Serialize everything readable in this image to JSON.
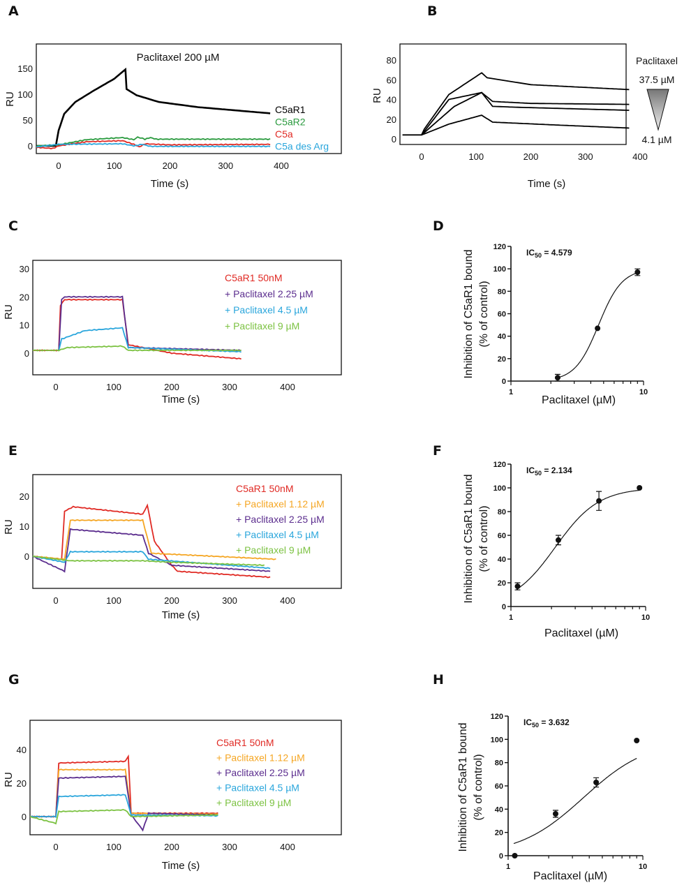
{
  "chart_data": [
    {
      "panel": "A",
      "type": "line",
      "title": "Paclitaxel 200 µM",
      "xlabel": "Time (s)",
      "ylabel": "RU",
      "xticks": [
        0,
        100,
        200,
        300,
        400
      ],
      "yticks": [
        0,
        50,
        100,
        150
      ],
      "xlim": [
        -40,
        510
      ],
      "ylim": [
        -15,
        197
      ],
      "series": [
        {
          "name": "C5aR1",
          "color": "#000000",
          "points": [
            [
              -40,
              0
            ],
            [
              -5,
              0
            ],
            [
              0,
              30
            ],
            [
              10,
              62
            ],
            [
              30,
              85
            ],
            [
              60,
              105
            ],
            [
              100,
              130
            ],
            [
              120,
              148
            ],
            [
              122,
              110
            ],
            [
              140,
              98
            ],
            [
              180,
              85
            ],
            [
              250,
              75
            ],
            [
              380,
              63
            ]
          ]
        },
        {
          "name": "C5aR2",
          "color": "#2a9a3e",
          "points": [
            [
              -40,
              0
            ],
            [
              0,
              2
            ],
            [
              50,
              12
            ],
            [
              115,
              16
            ],
            [
              135,
              12
            ],
            [
              142,
              17
            ],
            [
              155,
              13
            ],
            [
              165,
              16
            ],
            [
              175,
              13
            ],
            [
              380,
              13
            ]
          ]
        },
        {
          "name": "C5a",
          "color": "#e02a24",
          "points": [
            [
              -40,
              -3
            ],
            [
              -10,
              -5
            ],
            [
              0,
              0
            ],
            [
              50,
              8
            ],
            [
              115,
              10
            ],
            [
              135,
              3
            ],
            [
              145,
              -2
            ],
            [
              155,
              4
            ],
            [
              200,
              2
            ],
            [
              380,
              3
            ]
          ]
        },
        {
          "name": "C5a des Arg",
          "color": "#2aa6dc",
          "points": [
            [
              -40,
              -2
            ],
            [
              0,
              3
            ],
            [
              115,
              4
            ],
            [
              135,
              0
            ],
            [
              150,
              3
            ],
            [
              165,
              -1
            ],
            [
              380,
              -1
            ]
          ]
        }
      ]
    },
    {
      "panel": "B",
      "type": "line",
      "xlabel": "Time (s)",
      "ylabel": "RU",
      "xticks": [
        0,
        100,
        200,
        300,
        400
      ],
      "yticks": [
        0,
        20,
        40,
        60,
        80
      ],
      "xlim": [
        -40,
        375
      ],
      "ylim": [
        -6,
        96
      ],
      "legend_title": "Paclitaxel",
      "legend_high": "37.5 µM",
      "legend_low": "4.1 µM",
      "series": [
        {
          "color": "#000000",
          "points": [
            [
              -35,
              4
            ],
            [
              0,
              4
            ],
            [
              5,
              10
            ],
            [
              50,
              45
            ],
            [
              110,
              67
            ],
            [
              120,
              62
            ],
            [
              200,
              55
            ],
            [
              380,
              50
            ]
          ]
        },
        {
          "color": "#000000",
          "points": [
            [
              0,
              4
            ],
            [
              50,
              40
            ],
            [
              110,
              47
            ],
            [
              130,
              38
            ],
            [
              200,
              36
            ],
            [
              380,
              35
            ]
          ]
        },
        {
          "color": "#000000",
          "points": [
            [
              0,
              4
            ],
            [
              60,
              33
            ],
            [
              110,
              47
            ],
            [
              130,
              33
            ],
            [
              180,
              32
            ],
            [
              380,
              29
            ]
          ]
        },
        {
          "color": "#000000",
          "points": [
            [
              0,
              4
            ],
            [
              50,
              15
            ],
            [
              110,
              24
            ],
            [
              130,
              17
            ],
            [
              250,
              14
            ],
            [
              380,
              11
            ]
          ]
        }
      ]
    },
    {
      "panel": "C",
      "type": "line",
      "xlabel": "Time (s)",
      "ylabel": "RU",
      "xticks": [
        0,
        100,
        200,
        300,
        400
      ],
      "yticks": [
        0,
        10,
        20,
        30
      ],
      "xlim": [
        -40,
        492
      ],
      "ylim": [
        -8,
        33
      ],
      "series": [
        {
          "name": "C5aR1 50nM",
          "color": "#e02a24",
          "points": [
            [
              -40,
              1
            ],
            [
              5,
              1
            ],
            [
              8,
              17
            ],
            [
              15,
              19
            ],
            [
              115,
              19
            ],
            [
              125,
              3
            ],
            [
              200,
              0
            ],
            [
              320,
              -2
            ]
          ]
        },
        {
          "name": "+ Paclitaxel 2.25 µM",
          "color": "#5b2d8e",
          "points": [
            [
              5,
              1
            ],
            [
              10,
              19
            ],
            [
              15,
              20
            ],
            [
              115,
              20
            ],
            [
              125,
              2
            ],
            [
              320,
              1
            ]
          ]
        },
        {
          "name": "+ Paclitaxel 4.5 µM",
          "color": "#2aa6dc",
          "points": [
            [
              5,
              1
            ],
            [
              10,
              5
            ],
            [
              50,
              8
            ],
            [
              115,
              9
            ],
            [
              125,
              2
            ],
            [
              320,
              0.5
            ]
          ]
        },
        {
          "name": "+ Paclitaxel 9 µM",
          "color": "#7cc242",
          "points": [
            [
              -40,
              1
            ],
            [
              5,
              1
            ],
            [
              20,
              2
            ],
            [
              115,
              2.5
            ],
            [
              125,
              1
            ],
            [
              320,
              1
            ]
          ]
        }
      ]
    },
    {
      "panel": "D",
      "type": "scatter",
      "xlabel": "Paclitaxel (µM)",
      "ylabel": "Inhibition of C5aR1 bound",
      "ylabel2": "(% of control)",
      "xscale": "log",
      "xlim": [
        1,
        10
      ],
      "ylim": [
        0,
        120
      ],
      "xticks": [
        1,
        10
      ],
      "yticks": [
        0,
        20,
        40,
        60,
        80,
        100,
        120
      ],
      "ic50_label": "IC",
      "ic50_sub": "50",
      "ic50_value": " = 4.579",
      "ic50": 4.579,
      "points": [
        {
          "x": 2.25,
          "y": 3,
          "err": 3
        },
        {
          "x": 4.5,
          "y": 47,
          "err": 0
        },
        {
          "x": 9,
          "y": 97,
          "err": 3
        }
      ]
    },
    {
      "panel": "E",
      "type": "line",
      "xlabel": "Time (s)",
      "ylabel": "RU",
      "xticks": [
        0,
        100,
        200,
        300,
        400
      ],
      "yticks": [
        0,
        10,
        20
      ],
      "xlim": [
        -40,
        492
      ],
      "ylim": [
        -11,
        27
      ],
      "series": [
        {
          "name": "C5aR1 50nM",
          "color": "#e02a24",
          "points": [
            [
              -40,
              0
            ],
            [
              10,
              -1
            ],
            [
              15,
              15
            ],
            [
              30,
              16.5
            ],
            [
              150,
              14
            ],
            [
              158,
              17
            ],
            [
              170,
              5
            ],
            [
              200,
              -3
            ],
            [
              210,
              -5
            ],
            [
              370,
              -7
            ]
          ]
        },
        {
          "name": "+ Paclitaxel 1.12 µM",
          "color": "#f5a623",
          "points": [
            [
              -40,
              0
            ],
            [
              15,
              -1
            ],
            [
              25,
              12
            ],
            [
              150,
              12
            ],
            [
              165,
              1
            ],
            [
              380,
              -1
            ]
          ]
        },
        {
          "name": "+ Paclitaxel 2.25 µM",
          "color": "#5b2d8e",
          "points": [
            [
              -40,
              0
            ],
            [
              15,
              -5
            ],
            [
              25,
              9
            ],
            [
              150,
              7
            ],
            [
              160,
              1
            ],
            [
              200,
              -3
            ],
            [
              370,
              -5
            ]
          ]
        },
        {
          "name": "+ Paclitaxel 4.5 µM",
          "color": "#2aa6dc",
          "points": [
            [
              -40,
              0
            ],
            [
              15,
              -2
            ],
            [
              25,
              1.5
            ],
            [
              150,
              1.5
            ],
            [
              160,
              -1
            ],
            [
              370,
              -4
            ]
          ]
        },
        {
          "name": "+ Paclitaxel 9 µM",
          "color": "#7cc242",
          "points": [
            [
              -40,
              0
            ],
            [
              25,
              -1.5
            ],
            [
              150,
              -1.5
            ],
            [
              200,
              -2
            ],
            [
              360,
              -3
            ]
          ]
        }
      ]
    },
    {
      "panel": "F",
      "type": "scatter",
      "xlabel": "Paclitaxel (µM)",
      "ylabel": "Inhibition of C5aR1 bound",
      "ylabel2": "(% of control)",
      "xscale": "log",
      "xlim": [
        1,
        10
      ],
      "ylim": [
        0,
        120
      ],
      "xticks": [
        1,
        10
      ],
      "yticks": [
        0,
        20,
        40,
        60,
        80,
        100,
        120
      ],
      "ic50_label": "IC",
      "ic50_sub": "50",
      "ic50_value": " = 2.134",
      "ic50": 2.134,
      "points": [
        {
          "x": 1.12,
          "y": 17,
          "err": 3
        },
        {
          "x": 2.25,
          "y": 56,
          "err": 4
        },
        {
          "x": 4.5,
          "y": 89,
          "err": 8
        },
        {
          "x": 9,
          "y": 100,
          "err": 0
        }
      ]
    },
    {
      "panel": "G",
      "type": "line",
      "xlabel": "Time (s)",
      "ylabel": "RU",
      "xticks": [
        0,
        100,
        200,
        300,
        400
      ],
      "yticks": [
        0,
        20,
        40
      ],
      "xlim": [
        -45,
        492
      ],
      "ylim": [
        -11,
        57
      ],
      "series": [
        {
          "name": "C5aR1 50nM",
          "color": "#e02a24",
          "points": [
            [
              -45,
              0
            ],
            [
              0,
              0
            ],
            [
              5,
              32
            ],
            [
              120,
              33
            ],
            [
              125,
              36
            ],
            [
              130,
              2
            ],
            [
              280,
              2
            ]
          ]
        },
        {
          "name": "+ Paclitaxel 1.12 µM",
          "color": "#f5a623",
          "points": [
            [
              -45,
              0
            ],
            [
              0,
              0
            ],
            [
              5,
              28
            ],
            [
              120,
              28
            ],
            [
              130,
              2
            ],
            [
              280,
              1.5
            ]
          ]
        },
        {
          "name": "+ Paclitaxel 2.25 µM",
          "color": "#5b2d8e",
          "points": [
            [
              -45,
              0
            ],
            [
              0,
              0
            ],
            [
              5,
              23
            ],
            [
              120,
              24
            ],
            [
              130,
              1
            ],
            [
              150,
              -8
            ],
            [
              160,
              2
            ],
            [
              280,
              1
            ]
          ]
        },
        {
          "name": "+ Paclitaxel 4.5 µM",
          "color": "#2aa6dc",
          "points": [
            [
              -45,
              0
            ],
            [
              0,
              0
            ],
            [
              5,
              12
            ],
            [
              120,
              13
            ],
            [
              130,
              1
            ],
            [
              280,
              0.5
            ]
          ]
        },
        {
          "name": "+ Paclitaxel 9 µM",
          "color": "#7cc242",
          "points": [
            [
              -45,
              0
            ],
            [
              0,
              -4
            ],
            [
              5,
              3
            ],
            [
              120,
              4
            ],
            [
              130,
              0
            ],
            [
              280,
              1
            ]
          ]
        }
      ]
    },
    {
      "panel": "H",
      "type": "scatter",
      "xlabel": "Paclitaxel (µM)",
      "ylabel": "Inhibition of C5aR1 bound",
      "ylabel2": "(% of control)",
      "xscale": "log",
      "xlim": [
        1,
        10
      ],
      "ylim": [
        0,
        120
      ],
      "xticks": [
        1,
        10
      ],
      "yticks": [
        0,
        20,
        40,
        60,
        80,
        100,
        120
      ],
      "ic50_label": "IC",
      "ic50_sub": "50",
      "ic50_value": " = 3.632",
      "ic50": 3.632,
      "points": [
        {
          "x": 1.12,
          "y": 0,
          "err": 0
        },
        {
          "x": 2.25,
          "y": 36,
          "err": 3
        },
        {
          "x": 4.5,
          "y": 63,
          "err": 4
        },
        {
          "x": 9,
          "y": 99,
          "err": 0
        }
      ]
    }
  ]
}
